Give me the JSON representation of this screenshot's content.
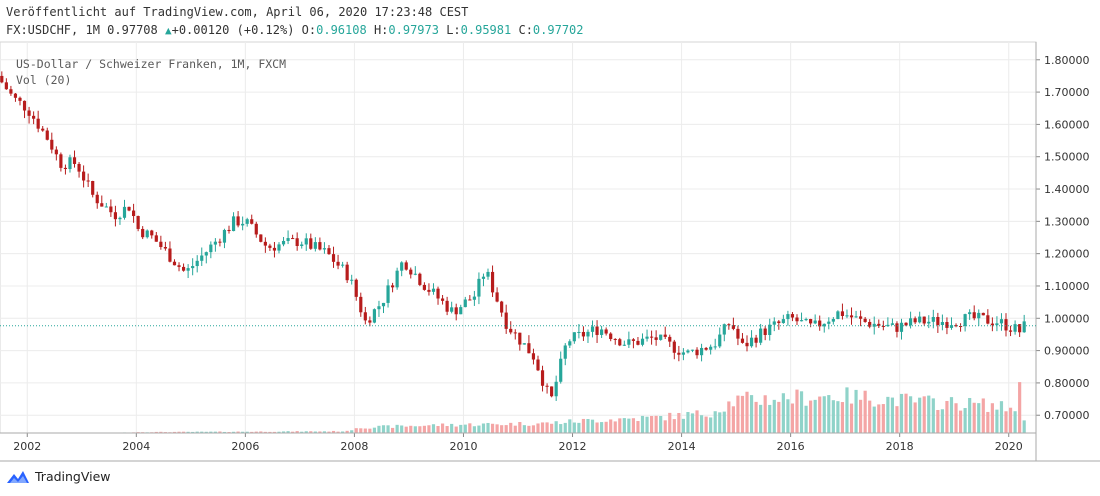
{
  "header": {
    "published": "Veröffentlicht auf TradingView.com, April 06, 2020 17:23:48 CEST",
    "symbol": "FX:USDCHF,",
    "interval": "1M",
    "last": "0.97708",
    "change": "+0.00120 (+0.12%)",
    "o_label": "O:",
    "o_value": "0.96108",
    "h_label": "H:",
    "h_value": "0.97973",
    "l_label": "L:",
    "l_value": "0.95981",
    "c_label": "C:",
    "c_value": "0.97702"
  },
  "legend": {
    "title": "US-Dollar / Schweizer Franken, 1M, FXCM",
    "volume": "Vol (20)"
  },
  "brand": {
    "name": "TradingView"
  },
  "colors": {
    "up": "#26a69a",
    "down": "#b71c1c",
    "vol_up": "#8fd3c9",
    "vol_down": "#f4a5a5",
    "grid": "#ececec"
  },
  "chart_data": {
    "type": "candlestick",
    "x_tick_labels": [
      "2002",
      "2004",
      "2006",
      "2008",
      "2010",
      "2012",
      "2014",
      "2016",
      "2018",
      "2020"
    ],
    "y_tick_labels": [
      "1.80000",
      "1.70000",
      "1.60000",
      "1.50000",
      "1.40000",
      "1.30000",
      "1.20000",
      "1.10000",
      "1.00000",
      "0.90000",
      "0.80000",
      "0.70000"
    ],
    "xlim": [
      2001.5,
      2020.5
    ],
    "ylim": [
      0.645,
      1.855
    ],
    "close_path_yearly": [
      [
        2001.45,
        1.75
      ],
      [
        2001.75,
        1.68
      ],
      [
        2002.0,
        1.65
      ],
      [
        2002.4,
        1.55
      ],
      [
        2002.6,
        1.48
      ],
      [
        2002.9,
        1.48
      ],
      [
        2003.2,
        1.38
      ],
      [
        2003.6,
        1.32
      ],
      [
        2003.9,
        1.35
      ],
      [
        2004.0,
        1.28
      ],
      [
        2004.3,
        1.25
      ],
      [
        2004.9,
        1.14
      ],
      [
        2005.3,
        1.21
      ],
      [
        2005.8,
        1.3
      ],
      [
        2006.0,
        1.3
      ],
      [
        2006.4,
        1.22
      ],
      [
        2007.0,
        1.24
      ],
      [
        2007.5,
        1.2
      ],
      [
        2007.9,
        1.13
      ],
      [
        2008.2,
        0.99
      ],
      [
        2008.5,
        1.05
      ],
      [
        2008.9,
        1.18
      ],
      [
        2009.3,
        1.1
      ],
      [
        2009.8,
        1.02
      ],
      [
        2010.2,
        1.07
      ],
      [
        2010.4,
        1.15
      ],
      [
        2010.8,
        0.98
      ],
      [
        2011.3,
        0.88
      ],
      [
        2011.6,
        0.74
      ],
      [
        2011.9,
        0.93
      ],
      [
        2012.5,
        0.97
      ],
      [
        2013.0,
        0.92
      ],
      [
        2013.5,
        0.94
      ],
      [
        2014.1,
        0.89
      ],
      [
        2014.6,
        0.92
      ],
      [
        2014.9,
        0.99
      ],
      [
        2015.1,
        0.91
      ],
      [
        2015.5,
        0.96
      ],
      [
        2016.0,
        1.0
      ],
      [
        2016.4,
        0.97
      ],
      [
        2016.9,
        1.02
      ],
      [
        2017.3,
        0.99
      ],
      [
        2017.9,
        0.97
      ],
      [
        2018.3,
        0.99
      ],
      [
        2018.9,
        0.99
      ],
      [
        2019.3,
        1.0
      ],
      [
        2019.8,
        0.99
      ],
      [
        2020.2,
        0.96
      ],
      [
        2020.3,
        0.977
      ]
    ],
    "volume_envelope_yearly": [
      [
        2001.5,
        0.0
      ],
      [
        2003.5,
        0.0
      ],
      [
        2004.0,
        0.02
      ],
      [
        2007.9,
        0.04
      ],
      [
        2008.0,
        0.12
      ],
      [
        2009.5,
        0.18
      ],
      [
        2011.5,
        0.22
      ],
      [
        2012.5,
        0.3
      ],
      [
        2013.5,
        0.35
      ],
      [
        2014.5,
        0.45
      ],
      [
        2015.0,
        0.75
      ],
      [
        2016.0,
        0.8
      ],
      [
        2016.8,
        0.85
      ],
      [
        2017.5,
        0.8
      ],
      [
        2018.5,
        0.7
      ],
      [
        2019.5,
        0.65
      ],
      [
        2020.1,
        0.55
      ],
      [
        2020.2,
        1.0
      ],
      [
        2020.3,
        0.15
      ]
    ],
    "last_price": 0.97708
  }
}
